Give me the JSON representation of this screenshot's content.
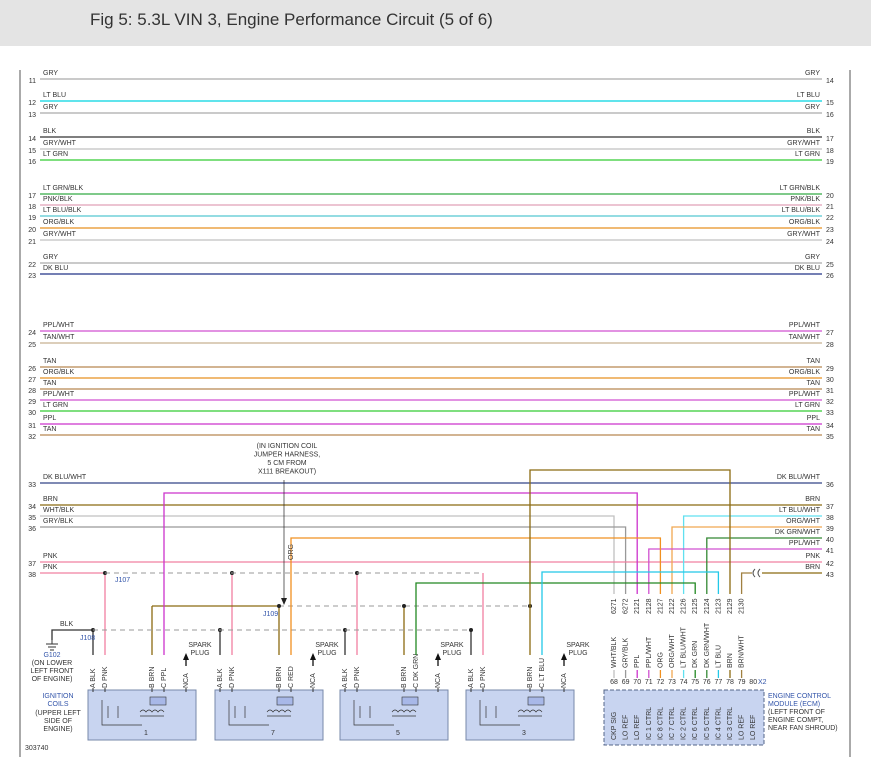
{
  "header": {
    "title": "Fig 5: 5.3L VIN 3, Engine Performance Circuit (5 of 6)"
  },
  "harness": {
    "wires": [
      {
        "left_pin": "11",
        "left_label": "GRY",
        "right_pin": "14",
        "right_label": "GRY",
        "color": "#aaaaaa"
      },
      {
        "left_pin": "12",
        "left_label": "LT BLU",
        "right_pin": "15",
        "right_label": "LT BLU",
        "color": "#00d4e0"
      },
      {
        "left_pin": "13",
        "left_label": "GRY",
        "right_pin": "16",
        "right_label": "GRY",
        "color": "#aaaaaa"
      },
      {
        "left_pin": "14",
        "left_label": "BLK",
        "right_pin": "17",
        "right_label": "BLK",
        "color": "#333333"
      },
      {
        "left_pin": "15",
        "left_label": "GRY/WHT",
        "right_pin": "18",
        "right_label": "GRY/WHT",
        "color": "#c0c0c0"
      },
      {
        "left_pin": "16",
        "left_label": "LT GRN",
        "right_pin": "19",
        "right_label": "LT GRN",
        "color": "#33cc33"
      },
      {
        "left_pin": "17",
        "left_label": "LT GRN/BLK",
        "right_pin": "20",
        "right_label": "LT GRN/BLK",
        "color": "#33aa44"
      },
      {
        "left_pin": "18",
        "left_label": "PNK/BLK",
        "right_pin": "21",
        "right_label": "PNK/BLK",
        "color": "#e0a0b8"
      },
      {
        "left_pin": "19",
        "left_label": "LT BLU/BLK",
        "right_pin": "22",
        "right_label": "LT BLU/BLK",
        "color": "#55c8d0"
      },
      {
        "left_pin": "20",
        "left_label": "ORG/BLK",
        "right_pin": "23",
        "right_label": "ORG/BLK",
        "color": "#e89020"
      },
      {
        "left_pin": "21",
        "left_label": "GRY/WHT",
        "right_pin": "24",
        "right_label": "GRY/WHT",
        "color": "#c0c0c0"
      },
      {
        "left_pin": "22",
        "left_label": "GRY",
        "right_pin": "25",
        "right_label": "GRY",
        "color": "#aaaaaa"
      },
      {
        "left_pin": "23",
        "left_label": "DK BLU",
        "right_pin": "26",
        "right_label": "DK BLU",
        "color": "#223388"
      },
      {
        "left_pin": "24",
        "left_label": "PPL/WHT",
        "right_pin": "27",
        "right_label": "PPL/WHT",
        "color": "#d050d0"
      },
      {
        "left_pin": "25",
        "left_label": "TAN/WHT",
        "right_pin": "28",
        "right_label": "TAN/WHT",
        "color": "#c8b090"
      },
      {
        "left_pin": "26",
        "left_label": "TAN",
        "right_pin": "29",
        "right_label": "TAN",
        "color": "#b88850"
      },
      {
        "left_pin": "27",
        "left_label": "ORG/BLK",
        "right_pin": "30",
        "right_label": "ORG/BLK",
        "color": "#e89020"
      },
      {
        "left_pin": "28",
        "left_label": "TAN",
        "right_pin": "31",
        "right_label": "TAN",
        "color": "#b88850"
      },
      {
        "left_pin": "29",
        "left_label": "PPL/WHT",
        "right_pin": "32",
        "right_label": "PPL/WHT",
        "color": "#d050d0"
      },
      {
        "left_pin": "30",
        "left_label": "LT GRN",
        "right_pin": "33",
        "right_label": "LT GRN",
        "color": "#33cc33"
      },
      {
        "left_pin": "31",
        "left_label": "PPL",
        "right_pin": "34",
        "right_label": "PPL",
        "color": "#cc33cc"
      },
      {
        "left_pin": "32",
        "left_label": "TAN",
        "right_pin": "35",
        "right_label": "TAN",
        "color": "#b88850"
      }
    ]
  },
  "lower": {
    "left": [
      {
        "pin": "33",
        "label": "DK BLU/WHT",
        "color": "#334488"
      },
      {
        "pin": "34",
        "label": "BRN",
        "color": "#8b6a10"
      },
      {
        "pin": "35",
        "label": "WHT/BLK",
        "color": "#c0c0c0"
      },
      {
        "pin": "36",
        "label": "GRY/BLK",
        "color": "#999999"
      },
      {
        "pin": "37",
        "label": "PNK",
        "color": "#f080a0"
      },
      {
        "pin": "38",
        "label": "PNK",
        "color": "#f080a0"
      }
    ],
    "right": [
      {
        "pin": "36",
        "label": "DK BLU/WHT",
        "color": "#334488"
      },
      {
        "pin": "37",
        "label": "BRN",
        "color": "#8b6a10"
      },
      {
        "pin": "38",
        "label": "LT BLU/WHT",
        "color": "#60e0f0"
      },
      {
        "pin": "39",
        "label": "ORG/WHT",
        "color": "#f0a850"
      },
      {
        "pin": "40",
        "label": "DK GRN/WHT",
        "color": "#338833"
      },
      {
        "pin": "41",
        "label": "PPL/WHT",
        "color": "#d050d0"
      },
      {
        "pin": "42",
        "label": "PNK",
        "color": "#f080a0"
      },
      {
        "pin": "43",
        "label": "BRN",
        "color": "#8b6a10"
      }
    ]
  },
  "splices": [
    "J107",
    "J108",
    "J109"
  ],
  "note": [
    "(IN IGNITION COIL",
    "JUMPER HARNESS,",
    "5 CM FROM",
    "X111 BREAKOUT)"
  ],
  "org_label": "ORG",
  "ground": {
    "wire": "BLK",
    "name": "G102",
    "location": [
      "(ON LOWER",
      "LEFT FRONT",
      "OF ENGINE)"
    ]
  },
  "coils": {
    "title": [
      "IGNITION",
      "COILS"
    ],
    "location": [
      "(UPPER LEFT",
      "SIDE OF",
      "ENGINE)"
    ],
    "units": [
      {
        "number": "1",
        "pins": [
          "A BLK",
          "D PNK",
          "B BRN",
          "C PPL",
          "NCA"
        ],
        "spark_plug": [
          "SPARK",
          "PLUG"
        ]
      },
      {
        "number": "7",
        "pins": [
          "A BLK",
          "D PNK",
          "B BRN",
          "C RED",
          "NCA"
        ],
        "spark_plug": [
          "SPARK",
          "PLUG"
        ]
      },
      {
        "number": "5",
        "pins": [
          "A BLK",
          "D PNK",
          "B BRN",
          "C DK GRN",
          "NCA"
        ],
        "spark_plug": [
          "SPARK",
          "PLUG"
        ]
      },
      {
        "number": "3",
        "pins": [
          "A BLK",
          "D PNK",
          "B BRN",
          "C LT BLU",
          "NCA"
        ],
        "spark_plug": [
          "SPARK",
          "PLUG"
        ]
      }
    ]
  },
  "ecm": {
    "connector": "X2",
    "title": [
      "ENGINE CONTROL",
      "MODULE (ECM)"
    ],
    "location": [
      "(LEFT FRONT OF",
      "ENGINE COMPT,",
      "NEAR FAN SHROUD)"
    ],
    "pins": [
      {
        "pin": "68",
        "signal": "CKP SIG"
      },
      {
        "pin": "69",
        "signal": "LO REF"
      },
      {
        "pin": "70",
        "signal": "LO REF"
      },
      {
        "pin": "71",
        "signal": "IC 1 CTRL"
      },
      {
        "pin": "72",
        "signal": "IC 8 CTRL"
      },
      {
        "pin": "73",
        "signal": "IC 7 CTRL"
      },
      {
        "pin": "74",
        "signal": "IC 2 CTRL"
      },
      {
        "pin": "75",
        "signal": "IC 6 CTRL"
      },
      {
        "pin": "76",
        "signal": "IC 5 CTRL"
      },
      {
        "pin": "77",
        "signal": "IC 4 CTRL"
      },
      {
        "pin": "78",
        "signal": "IC 3 CTRL"
      },
      {
        "pin": "79",
        "signal": "LO REF"
      },
      {
        "pin": "80",
        "signal": "LO REF"
      }
    ],
    "wires": [
      {
        "circuit": "6271",
        "label": "WHT/BLK",
        "color": "#c0c0c0"
      },
      {
        "circuit": "6272",
        "label": "GRY/BLK",
        "color": "#999999"
      },
      {
        "circuit": "2121",
        "label": "PPL",
        "color": "#cc33cc"
      },
      {
        "circuit": "2128",
        "label": "PPL/WHT",
        "color": "#d050d0"
      },
      {
        "circuit": "2127",
        "label": "ORG",
        "color": "#f09020"
      },
      {
        "circuit": "2122",
        "label": "ORG/WHT",
        "color": "#f0a850"
      },
      {
        "circuit": "2126",
        "label": "LT BLU/WHT",
        "color": "#60e0f0"
      },
      {
        "circuit": "2125",
        "label": "DK GRN",
        "color": "#228822"
      },
      {
        "circuit": "2124",
        "label": "DK GRN/WHT",
        "color": "#338833"
      },
      {
        "circuit": "2123",
        "label": "LT BLU",
        "color": "#22c8e8"
      },
      {
        "circuit": "2129",
        "label": "BRN",
        "color": "#8b6a10"
      },
      {
        "circuit": "2130",
        "label": "BRN/WHT",
        "color": "#a08040"
      }
    ]
  },
  "figure_id": "303740"
}
